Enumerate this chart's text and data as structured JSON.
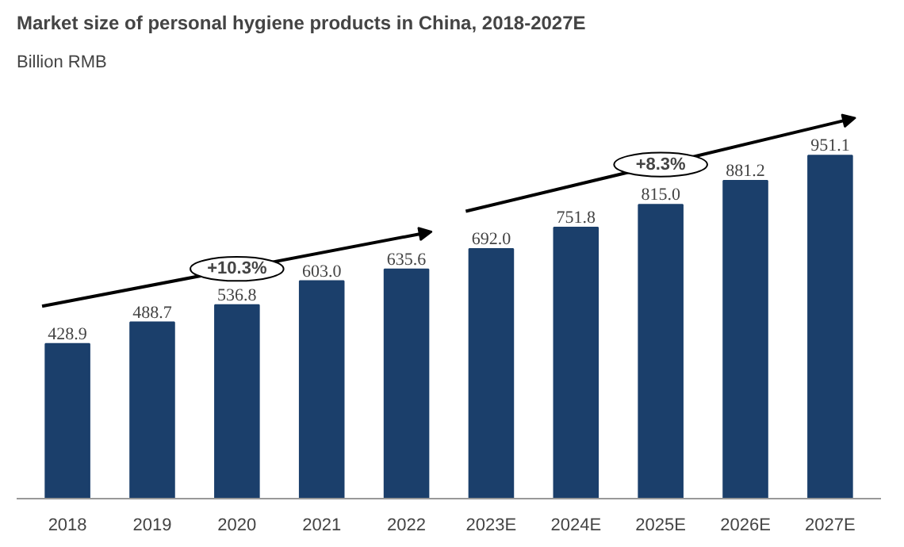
{
  "chart_data": {
    "type": "bar",
    "title": "Market size of personal hygiene products in China, 2018-2027E",
    "subtitle": "Billion RMB",
    "categories": [
      "2018",
      "2019",
      "2020",
      "2021",
      "2022",
      "2023E",
      "2024E",
      "2025E",
      "2026E",
      "2027E"
    ],
    "values": [
      428.9,
      488.7,
      536.8,
      603.0,
      635.6,
      692.0,
      751.8,
      815.0,
      881.2,
      951.1
    ],
    "color": "#1b3f6b",
    "value_labels": [
      "428.9",
      "488.7",
      "536.8",
      "603.0",
      "635.6",
      "692.0",
      "751.8",
      "815.0",
      "881.2",
      "951.1"
    ],
    "tick_labels": "x",
    "grid": false,
    "annotations": [
      "+10.3%",
      "+8.3%"
    ]
  }
}
